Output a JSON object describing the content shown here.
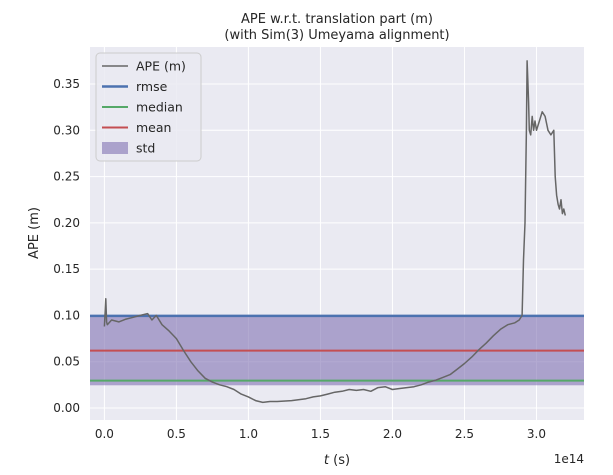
{
  "chart_data": {
    "type": "line",
    "title": "APE w.r.t. translation part (m)",
    "subtitle": "(with Sim(3) Umeyama alignment)",
    "xlabel": "t (s)",
    "xlabel_var": "t",
    "xlabel_unit": " (s)",
    "ylabel": "APE (m)",
    "x_offset_label": "1e14",
    "xlim": [
      -0.1,
      3.33
    ],
    "ylim": [
      -0.013,
      0.39
    ],
    "xticks": [
      0.0,
      0.5,
      1.0,
      1.5,
      2.0,
      2.5,
      3.0
    ],
    "xtick_labels": [
      "0.0",
      "0.5",
      "1.0",
      "1.5",
      "2.0",
      "2.5",
      "3.0"
    ],
    "yticks": [
      0.0,
      0.05,
      0.1,
      0.15,
      0.2,
      0.25,
      0.3,
      0.35
    ],
    "ytick_labels": [
      "0.00",
      "0.05",
      "0.10",
      "0.15",
      "0.20",
      "0.25",
      "0.30",
      "0.35"
    ],
    "grid": true,
    "legend_position": "top-left",
    "legend": [
      "APE (m)",
      "rmse",
      "median",
      "mean",
      "std"
    ],
    "colors": {
      "ape": "#666666",
      "rmse": "#4c72b0",
      "median": "#55a868",
      "mean": "#c44e52",
      "std": "#8172b2",
      "background": "#eaeaf2",
      "grid": "#ffffff"
    },
    "stats": {
      "rmse": 0.0995,
      "median": 0.0295,
      "mean": 0.062,
      "std_band": [
        0.0245,
        0.0995
      ]
    },
    "series": [
      {
        "name": "APE (m)",
        "x": [
          0.0,
          0.01,
          0.015,
          0.02,
          0.05,
          0.1,
          0.15,
          0.2,
          0.25,
          0.3,
          0.33,
          0.36,
          0.4,
          0.45,
          0.5,
          0.55,
          0.6,
          0.65,
          0.7,
          0.75,
          0.8,
          0.85,
          0.9,
          0.95,
          1.0,
          1.05,
          1.1,
          1.15,
          1.2,
          1.3,
          1.4,
          1.45,
          1.5,
          1.55,
          1.6,
          1.65,
          1.7,
          1.75,
          1.8,
          1.85,
          1.9,
          1.95,
          2.0,
          2.05,
          2.1,
          2.15,
          2.2,
          2.25,
          2.3,
          2.35,
          2.4,
          2.45,
          2.5,
          2.55,
          2.6,
          2.65,
          2.7,
          2.75,
          2.8,
          2.85,
          2.88,
          2.9,
          2.91,
          2.92,
          2.93,
          2.935,
          2.94,
          2.945,
          2.95,
          2.96,
          2.97,
          2.98,
          2.99,
          3.0,
          3.02,
          3.04,
          3.06,
          3.08,
          3.1,
          3.12,
          3.13,
          3.14,
          3.15,
          3.16,
          3.17,
          3.18,
          3.19,
          3.2
        ],
        "y": [
          0.088,
          0.118,
          0.093,
          0.09,
          0.095,
          0.093,
          0.096,
          0.098,
          0.1,
          0.102,
          0.095,
          0.1,
          0.09,
          0.083,
          0.075,
          0.062,
          0.05,
          0.04,
          0.032,
          0.028,
          0.025,
          0.023,
          0.02,
          0.015,
          0.012,
          0.008,
          0.006,
          0.007,
          0.007,
          0.008,
          0.01,
          0.012,
          0.013,
          0.015,
          0.017,
          0.018,
          0.02,
          0.019,
          0.02,
          0.018,
          0.022,
          0.023,
          0.02,
          0.021,
          0.022,
          0.023,
          0.025,
          0.028,
          0.03,
          0.033,
          0.036,
          0.042,
          0.048,
          0.055,
          0.063,
          0.07,
          0.078,
          0.085,
          0.09,
          0.092,
          0.095,
          0.1,
          0.16,
          0.2,
          0.3,
          0.375,
          0.355,
          0.33,
          0.3,
          0.295,
          0.315,
          0.3,
          0.31,
          0.3,
          0.31,
          0.32,
          0.315,
          0.3,
          0.295,
          0.3,
          0.25,
          0.23,
          0.22,
          0.215,
          0.225,
          0.21,
          0.215,
          0.208
        ]
      }
    ]
  }
}
